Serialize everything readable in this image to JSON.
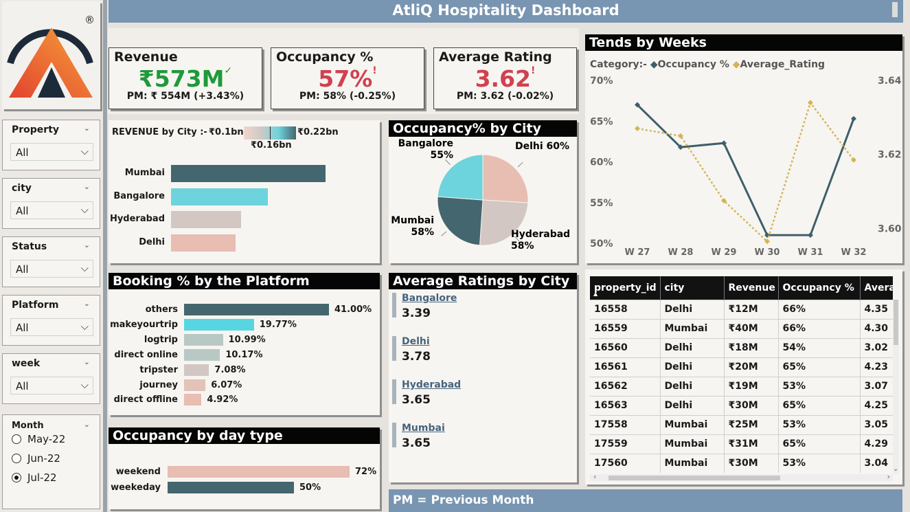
{
  "header": {
    "title": "AtliQ Hospitality Dashboard"
  },
  "logo": {
    "registered": "®"
  },
  "filters": [
    {
      "label": "Property",
      "value": "All"
    },
    {
      "label": "city",
      "value": "All"
    },
    {
      "label": "Status",
      "value": "All"
    },
    {
      "label": "Platform",
      "value": "All"
    },
    {
      "label": "week",
      "value": "All"
    }
  ],
  "month_filter": {
    "label": "Month",
    "options": [
      "May-22",
      "Jun-22",
      "Jul-22"
    ],
    "selected": "Jul-22"
  },
  "kpis": {
    "revenue": {
      "title": "Revenue",
      "value": "₹573M",
      "mark": "✓",
      "pm": "PM: ₹ 554M (+3.43%)"
    },
    "occupancy": {
      "title": "Occupancy %",
      "value": "57%",
      "mark": "!",
      "pm": "PM: 58% (-0.25%)"
    },
    "rating": {
      "title": "Average Rating",
      "value": "3.62",
      "mark": "!",
      "pm": "PM: 3.62 (-0.02%)"
    }
  },
  "revenue_by_city": {
    "title": "REVENUE by City :-",
    "legend_min": "₹0.1bn",
    "legend_max": "₹0.22bn",
    "legend_mid": "₹0.16bn",
    "chart_data": {
      "type": "bar",
      "categories": [
        "Mumbai",
        "Bangalore",
        "Hyderabad",
        "Delhi"
      ],
      "values": [
        0.22,
        0.138,
        0.1,
        0.092
      ],
      "colors": [
        "#44666e",
        "#6dd3dc",
        "#d2c7c3",
        "#e8bdb2"
      ]
    }
  },
  "occupancy_by_city": {
    "title": "Occupancy% by City",
    "chart_data": {
      "type": "pie",
      "labels": [
        "Delhi",
        "Hyderabad",
        "Mumbai",
        "Bangalore"
      ],
      "values": [
        60,
        58,
        58,
        55
      ],
      "display": [
        "Delhi 60%",
        "Hyderabad 58%",
        "Mumbai 58%",
        "Bangalore 55%"
      ],
      "colors": [
        "#e8bdb2",
        "#d2c7c3",
        "#44666e",
        "#6dd3dc"
      ]
    }
  },
  "trends": {
    "title": "Tends by Weeks",
    "legend_title": "Category:-",
    "chart_data": {
      "type": "line",
      "x": [
        "W 27",
        "W 28",
        "W 29",
        "W 30",
        "W 31",
        "W 32"
      ],
      "series": [
        {
          "name": "Occupancy %",
          "axis": "left",
          "color": "#3d5f6a",
          "values": [
            67.0,
            61.8,
            62.3,
            51.0,
            51.0,
            65.3
          ]
        },
        {
          "name": "Average_Rating",
          "axis": "right",
          "color": "#d4b45b",
          "values": [
            3.627,
            3.625,
            3.6075,
            3.5965,
            3.634,
            3.6185
          ]
        }
      ],
      "y_left": {
        "ticks": [
          "70%",
          "65%",
          "60%",
          "55%",
          "50%"
        ],
        "range": [
          50,
          70
        ]
      },
      "y_right": {
        "ticks": [
          "3.64",
          "3.62",
          "3.60"
        ],
        "range": [
          3.596,
          3.64
        ]
      }
    }
  },
  "booking_platform": {
    "title": "Booking % by the Platform",
    "chart_data": {
      "type": "bar",
      "categories": [
        "others",
        "makeyourtrip",
        "logtrip",
        "direct online",
        "tripster",
        "journey",
        "direct offline"
      ],
      "values": [
        41.0,
        19.77,
        10.99,
        10.17,
        7.08,
        6.07,
        4.92
      ],
      "display": [
        "41.00%",
        "19.77%",
        "10.99%",
        "10.17%",
        "7.08%",
        "6.07%",
        "4.92%"
      ],
      "colors": [
        "#44666e",
        "#57d6e2",
        "#b8c8c5",
        "#b8c8c5",
        "#d2c7c3",
        "#e3c2b8",
        "#e8bdb2"
      ]
    }
  },
  "day_type": {
    "title": "Occupancy by day type",
    "chart_data": {
      "type": "bar",
      "categories": [
        "weekend",
        "weekeday"
      ],
      "values": [
        72,
        50
      ],
      "display": [
        "72%",
        "50%"
      ],
      "colors": [
        "#e8bdb2",
        "#44666e"
      ]
    }
  },
  "ratings_by_city": {
    "title": "Average Ratings by City",
    "items": [
      {
        "city": "Bangalore",
        "value": "3.39"
      },
      {
        "city": "Delhi",
        "value": "3.78"
      },
      {
        "city": "Hyderabad",
        "value": "3.65"
      },
      {
        "city": "Mumbai",
        "value": "3.65"
      }
    ]
  },
  "footer_note": "PM = Previous Month",
  "table": {
    "columns": [
      "property_id",
      "city",
      "Revenue",
      "Occupancy %",
      "Avera"
    ],
    "rows": [
      [
        "16558",
        "Delhi",
        "₹12M",
        "66%",
        "4.35"
      ],
      [
        "16559",
        "Mumbai",
        "₹40M",
        "66%",
        "4.30"
      ],
      [
        "16560",
        "Delhi",
        "₹18M",
        "54%",
        "3.02"
      ],
      [
        "16561",
        "Delhi",
        "₹20M",
        "65%",
        "4.23"
      ],
      [
        "16562",
        "Delhi",
        "₹19M",
        "53%",
        "3.07"
      ],
      [
        "16563",
        "Delhi",
        "₹30M",
        "65%",
        "4.25"
      ],
      [
        "17558",
        "Mumbai",
        "₹25M",
        "53%",
        "3.05"
      ],
      [
        "17559",
        "Mumbai",
        "₹31M",
        "65%",
        "4.29"
      ],
      [
        "17560",
        "Mumbai",
        "₹30M",
        "53%",
        "3.04"
      ]
    ]
  }
}
